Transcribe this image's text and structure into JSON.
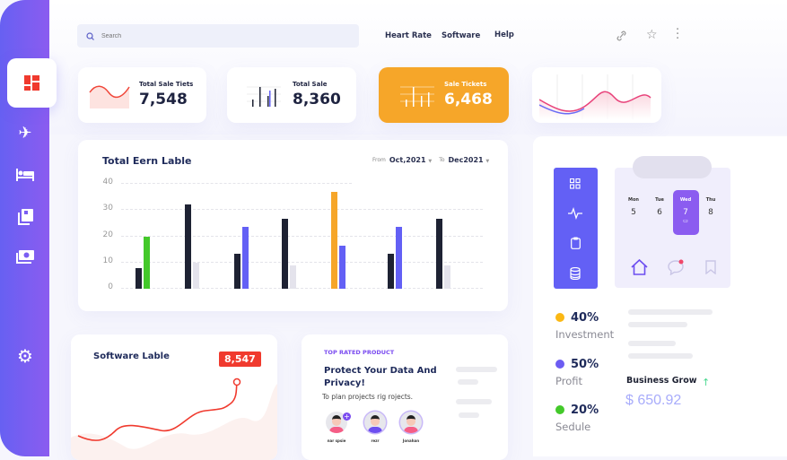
{
  "search": {
    "placeholder": "Search"
  },
  "nav": {
    "links": [
      "Heart Rate",
      "Software",
      "Help"
    ]
  },
  "sidebar": {
    "items": [
      "dashboard",
      "flights",
      "hotel",
      "bookings",
      "payments",
      "settings"
    ],
    "active": "dashboard"
  },
  "kpis": [
    {
      "title": "Total Sale Tiets",
      "value": "7,548"
    },
    {
      "title": "Total Sale",
      "value": "8,360"
    },
    {
      "title": "Sale Tickets",
      "value": "6,468"
    }
  ],
  "colors": {
    "accent": "#6c5ce7",
    "orange": "#f6a629",
    "red": "#f03a2e",
    "green": "#43c92a",
    "dark": "#1e2233",
    "light": "#e4e3ec",
    "purple": "#6360f5"
  },
  "earn_chart": {
    "title": "Total Eern Lable",
    "from_label": "From",
    "from_value": "Oct,2021",
    "to_label": "To",
    "to_value": "Dec2021",
    "chart_data": {
      "type": "bar",
      "ylim": [
        0,
        40
      ],
      "yticks": [
        0,
        10,
        20,
        30,
        40
      ],
      "grid": true,
      "groups": [
        {
          "values": [
            8,
            20
          ],
          "colors": [
            "dark",
            "green"
          ]
        },
        {
          "values": [
            32,
            10
          ],
          "colors": [
            "dark",
            "light"
          ]
        },
        {
          "values": [
            13.5,
            23.5
          ],
          "colors": [
            "dark",
            "purple"
          ]
        },
        {
          "values": [
            26.5,
            9
          ],
          "colors": [
            "dark",
            "light"
          ]
        },
        {
          "values": [
            37,
            16.5
          ],
          "colors": [
            "orange",
            "purple"
          ]
        },
        {
          "values": [
            13.5,
            23.5
          ],
          "colors": [
            "dark",
            "purple"
          ]
        },
        {
          "values": [
            26.5,
            9
          ],
          "colors": [
            "dark",
            "light"
          ]
        }
      ]
    }
  },
  "software": {
    "title": "Software Lable",
    "badge": "8,547"
  },
  "product": {
    "tag": "TOP RATED PRODUCT",
    "title": "Protect Your Data And Privacy!",
    "subtitle": "To plan projects rig rojects.",
    "people": [
      "nar spsie",
      "rezr",
      "Jonahan"
    ]
  },
  "calendar": {
    "days": [
      {
        "name": "Mon",
        "num": "5"
      },
      {
        "name": "Tue",
        "num": "6"
      },
      {
        "name": "Wed",
        "num": "7",
        "selected": true
      },
      {
        "name": "Thu",
        "num": "8"
      }
    ]
  },
  "stats": [
    {
      "pct": "40%",
      "label": "Investment",
      "color": "#fbb814"
    },
    {
      "pct": "50%",
      "label": "Profit",
      "color": "#6c5cf2"
    },
    {
      "pct": "20%",
      "label": "Sedule",
      "color": "#43c92a"
    }
  ],
  "business": {
    "title": "Business Grow",
    "value": "$ 650.92",
    "trend": "up"
  }
}
